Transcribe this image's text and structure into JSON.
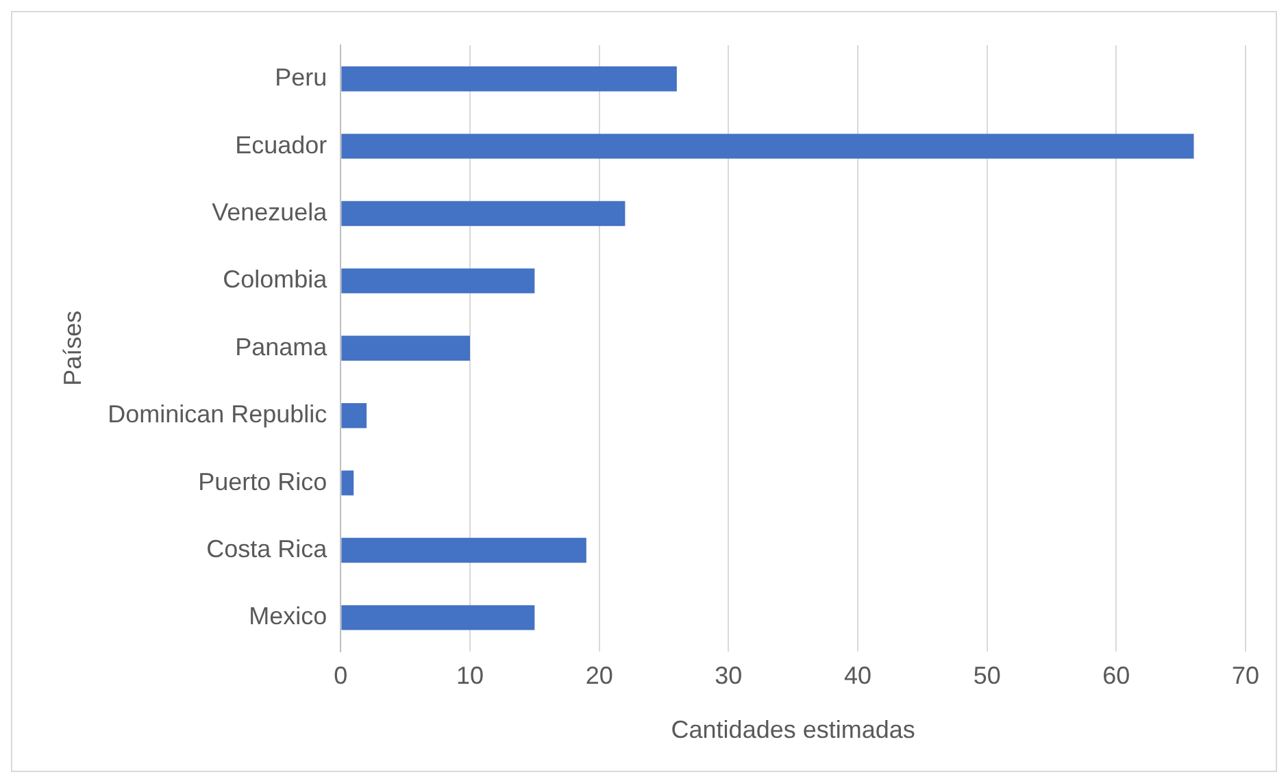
{
  "chart_data": {
    "type": "bar",
    "orientation": "horizontal",
    "xlabel": "Cantidades estimadas",
    "ylabel": "Países",
    "categories": [
      "Peru",
      "Ecuador",
      "Venezuela",
      "Colombia",
      "Panama",
      "Dominican Republic",
      "Puerto Rico",
      "Costa Rica",
      "Mexico"
    ],
    "values": [
      26,
      66,
      22,
      15,
      10,
      2,
      1,
      19,
      15
    ],
    "color": "#4472c4",
    "xlim": [
      0,
      70
    ],
    "xticks": [
      0,
      10,
      20,
      30,
      40,
      50,
      60,
      70
    ],
    "grid": "x",
    "legend": false
  }
}
